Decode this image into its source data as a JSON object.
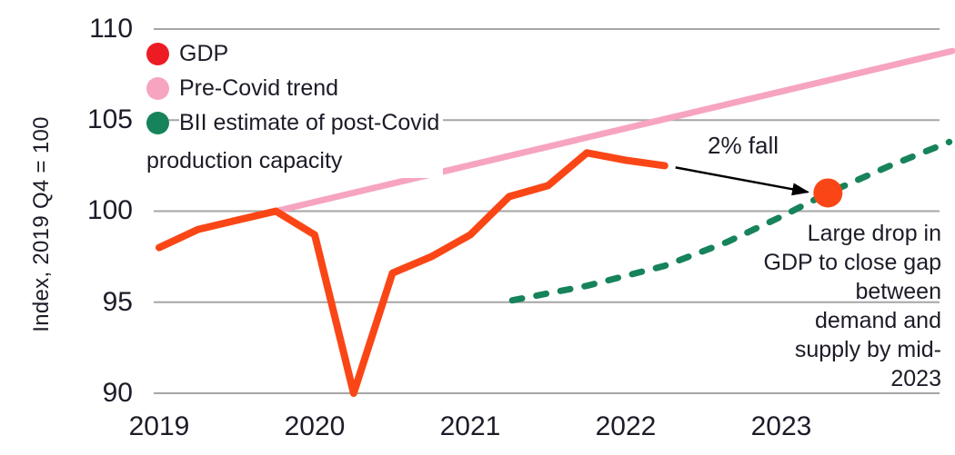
{
  "y_axis": {
    "title": "Index, 2019 Q4 = 100"
  },
  "legend": {
    "items": [
      {
        "label": "GDP",
        "color": "#ed1c24"
      },
      {
        "label": "Pre-Covid trend",
        "color": "#f6a4c0"
      },
      {
        "label": "BII estimate of post-Covid",
        "label_line2": "production capacity",
        "color": "#16835a"
      }
    ]
  },
  "annotations": {
    "fall_label": "2% fall",
    "drop_note_lines": [
      "Large drop in",
      "GDP to close gap",
      "between",
      "demand and",
      "supply by mid-",
      "2023"
    ]
  },
  "chart_data": {
    "type": "line",
    "title": "",
    "ylabel": "Index, 2019 Q4 = 100",
    "ylim": [
      90,
      110
    ],
    "xlim": [
      2019,
      2024.1
    ],
    "yticks": [
      110,
      105,
      100,
      95,
      90
    ],
    "xticks": [
      2019,
      2020,
      2021,
      2022,
      2023
    ],
    "grid": "horizontal-only",
    "grid_color": "#a6a6a6",
    "legend_position": "top-left-inside",
    "series": [
      {
        "id": "gdp",
        "name": "GDP",
        "style": "solid",
        "color": "#fa4616",
        "width": 8,
        "x": [
          2019.0,
          2019.25,
          2019.5,
          2019.75,
          2020.0,
          2020.25,
          2020.5,
          2020.75,
          2021.0,
          2021.25,
          2021.5,
          2021.75,
          2022.0,
          2022.25
        ],
        "y": [
          98.0,
          99.0,
          99.5,
          100.0,
          98.7,
          90.0,
          96.6,
          97.5,
          98.7,
          100.8,
          101.4,
          103.2,
          102.8,
          102.5
        ]
      },
      {
        "id": "pre-covid-trend",
        "name": "Pre-Covid trend",
        "style": "solid",
        "color": "#f6a4c0",
        "width": 7,
        "x": [
          2019.75,
          2024.1
        ],
        "y": [
          100.0,
          108.8
        ]
      },
      {
        "id": "bii-estimate",
        "name": "BII estimate of post-Covid production capacity",
        "style": "dashed",
        "color": "#16835a",
        "width": 7,
        "x": [
          2021.27,
          2021.75,
          2022.25,
          2022.65,
          2023.0,
          2023.3,
          2023.7,
          2024.08
        ],
        "y": [
          95.1,
          95.9,
          97.0,
          98.3,
          99.7,
          101.0,
          102.5,
          103.8
        ]
      }
    ],
    "point": {
      "series": "gdp",
      "x": 2023.3,
      "y": 101.0,
      "color": "#fa4616",
      "radius": 16
    },
    "arrow": {
      "from": [
        2022.32,
        102.4
      ],
      "to": [
        2023.17,
        101.05
      ],
      "color": "#000000",
      "label": "2% fall"
    }
  }
}
